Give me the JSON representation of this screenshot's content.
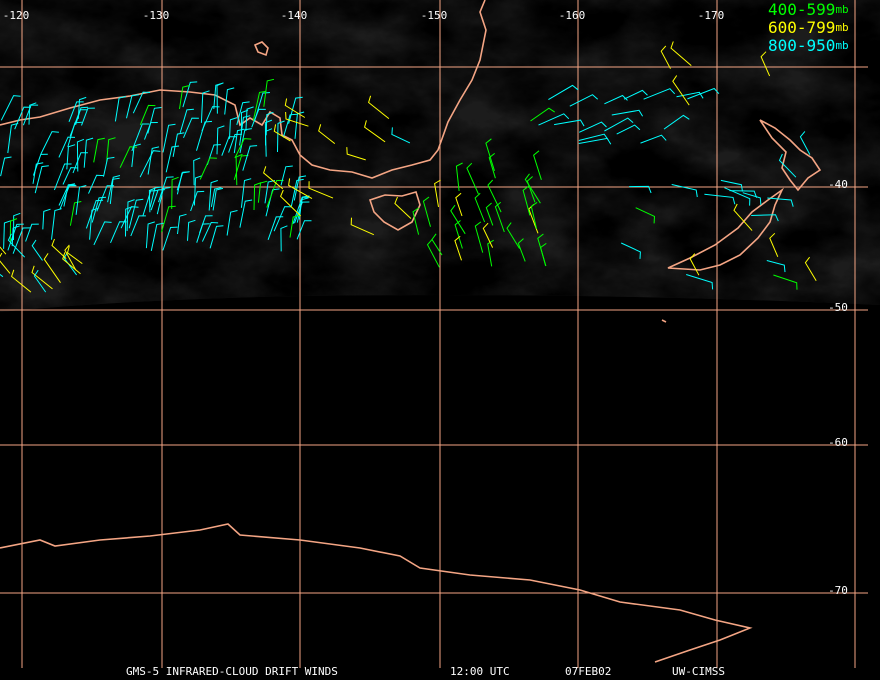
{
  "map": {
    "longitude_labels": [
      "-120",
      "-130",
      "-140",
      "-150",
      "-160",
      "-170"
    ],
    "latitude_labels": [
      "-40",
      "-50",
      "-60",
      "-70"
    ],
    "legend": [
      {
        "range": "400-599",
        "unit": "mb",
        "color": "#00ff00"
      },
      {
        "range": "600-799",
        "unit": "mb",
        "color": "#ffff00"
      },
      {
        "range": "800-950",
        "unit": "mb",
        "color": "#00ffff"
      }
    ],
    "footer": {
      "product": "GMS-5 INFRARED-CLOUD DRIFT WINDS",
      "time": "12:00 UTC",
      "date": "07FEB02",
      "source": "UW-CIMSS"
    }
  }
}
